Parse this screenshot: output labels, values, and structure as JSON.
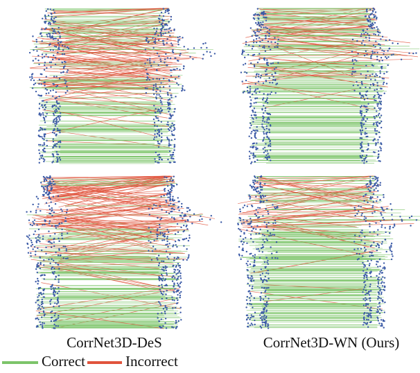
{
  "panels": [
    {
      "caption": "CorrNet3D-DeS"
    },
    {
      "caption": "CorrNet3D-WN (Ours)"
    }
  ],
  "legend": [
    {
      "label": "Correct",
      "color": "#7cc46a"
    },
    {
      "label": "Incorrect",
      "color": "#e0533c"
    }
  ]
}
